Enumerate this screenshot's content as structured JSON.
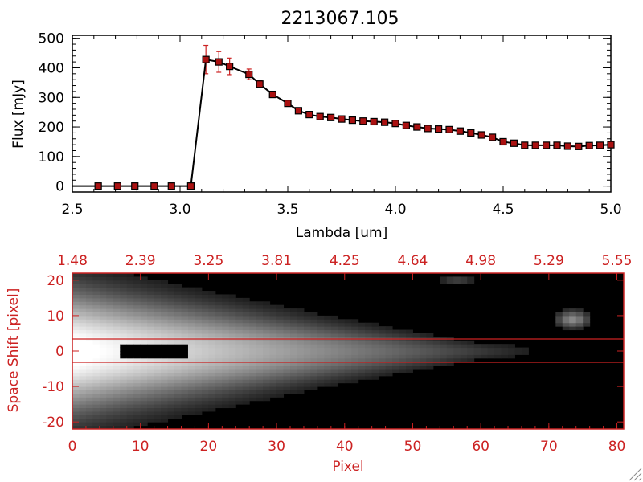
{
  "title": "2213067.105",
  "colors": {
    "axis_top": "#000000",
    "axis_bottom": "#cc2222",
    "series_line": "#000000",
    "marker_fill": "#aa1111",
    "error_bar": "#cc2222",
    "image_background": "#000000",
    "extraction_lines": "#cc2222"
  },
  "chart_data": [
    {
      "type": "line",
      "title": "2213067.105",
      "xlabel": "Lambda [um]",
      "ylabel": "Flux [mJy]",
      "xlim": [
        2.5,
        5.0
      ],
      "ylim": [
        -20,
        510
      ],
      "x_ticks": [
        "2.5",
        "3.0",
        "3.5",
        "4.0",
        "4.5",
        "5.0"
      ],
      "y_ticks": [
        "0",
        "100",
        "200",
        "300",
        "400",
        "500"
      ],
      "grid": false,
      "series": [
        {
          "x": [
            2.62,
            2.71,
            2.79,
            2.88,
            2.96,
            3.05,
            3.12,
            3.18,
            3.23,
            3.32,
            3.37,
            3.43,
            3.5,
            3.55,
            3.6,
            3.65,
            3.7,
            3.75,
            3.8,
            3.85,
            3.9,
            3.95,
            4.0,
            4.05,
            4.1,
            4.15,
            4.2,
            4.25,
            4.3,
            4.35,
            4.4,
            4.45,
            4.5,
            4.55,
            4.6,
            4.65,
            4.7,
            4.75,
            4.8,
            4.85,
            4.9,
            4.95,
            5.0
          ],
          "y": [
            0,
            0,
            0,
            0,
            0,
            0,
            428,
            420,
            405,
            378,
            345,
            310,
            280,
            255,
            242,
            235,
            232,
            227,
            223,
            220,
            218,
            216,
            212,
            205,
            200,
            195,
            193,
            191,
            186,
            180,
            173,
            165,
            150,
            145,
            138,
            138,
            138,
            138,
            135,
            134,
            137,
            138,
            140
          ],
          "yerr": [
            0,
            0,
            0,
            0,
            0,
            0,
            48,
            35,
            28,
            18,
            12,
            8,
            6,
            4,
            3,
            3,
            3,
            2,
            2,
            2,
            2,
            2,
            2,
            2,
            2,
            2,
            2,
            2,
            2,
            2,
            2,
            2,
            2,
            2,
            2,
            2,
            2,
            2,
            2,
            2,
            2,
            2,
            2
          ]
        }
      ]
    },
    {
      "type": "heatmap",
      "xlabel": "Pixel",
      "ylabel": "Space Shift [pixel]",
      "xlim": [
        0,
        81
      ],
      "ylim": [
        -22,
        22
      ],
      "x_ticks": [
        "0",
        "10",
        "20",
        "30",
        "40",
        "50",
        "60",
        "70",
        "80"
      ],
      "y_ticks": [
        "-20",
        "-10",
        "0",
        "10",
        "20"
      ],
      "top_ticks": [
        "1.48",
        "2.39",
        "3.25",
        "3.81",
        "4.25",
        "4.64",
        "4.98",
        "5.29",
        "5.55"
      ],
      "extraction_window": [
        -3,
        3
      ],
      "image_description_free": true
    }
  ]
}
